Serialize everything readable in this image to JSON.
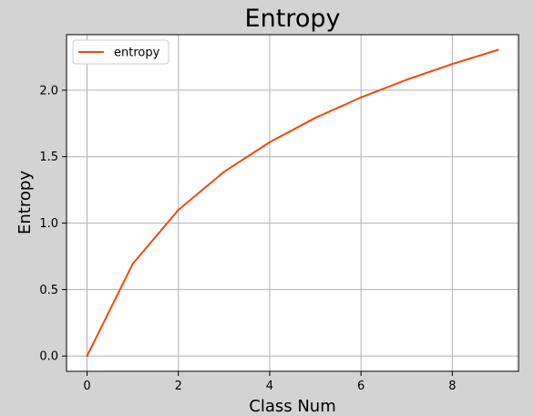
{
  "chart_data": {
    "type": "line",
    "title": "Entropy",
    "xlabel": "Class Num",
    "ylabel": "Entropy",
    "xlim": [
      -0.45,
      9.45
    ],
    "ylim": [
      -0.115,
      2.418
    ],
    "xticks": [
      0,
      2,
      4,
      6,
      8
    ],
    "xtick_labels": [
      "0",
      "2",
      "4",
      "6",
      "8"
    ],
    "yticks": [
      0.0,
      0.5,
      1.0,
      1.5,
      2.0
    ],
    "ytick_labels": [
      "0.0",
      "0.5",
      "1.0",
      "1.5",
      "2.0"
    ],
    "grid": true,
    "legend_position": "upper-left",
    "series": [
      {
        "name": "entropy",
        "color": "#f04a0a",
        "x": [
          0,
          1,
          2,
          3,
          4,
          5,
          6,
          7,
          8,
          9
        ],
        "y": [
          0.0,
          0.693,
          1.099,
          1.386,
          1.609,
          1.792,
          1.946,
          2.079,
          2.197,
          2.303
        ]
      }
    ]
  }
}
